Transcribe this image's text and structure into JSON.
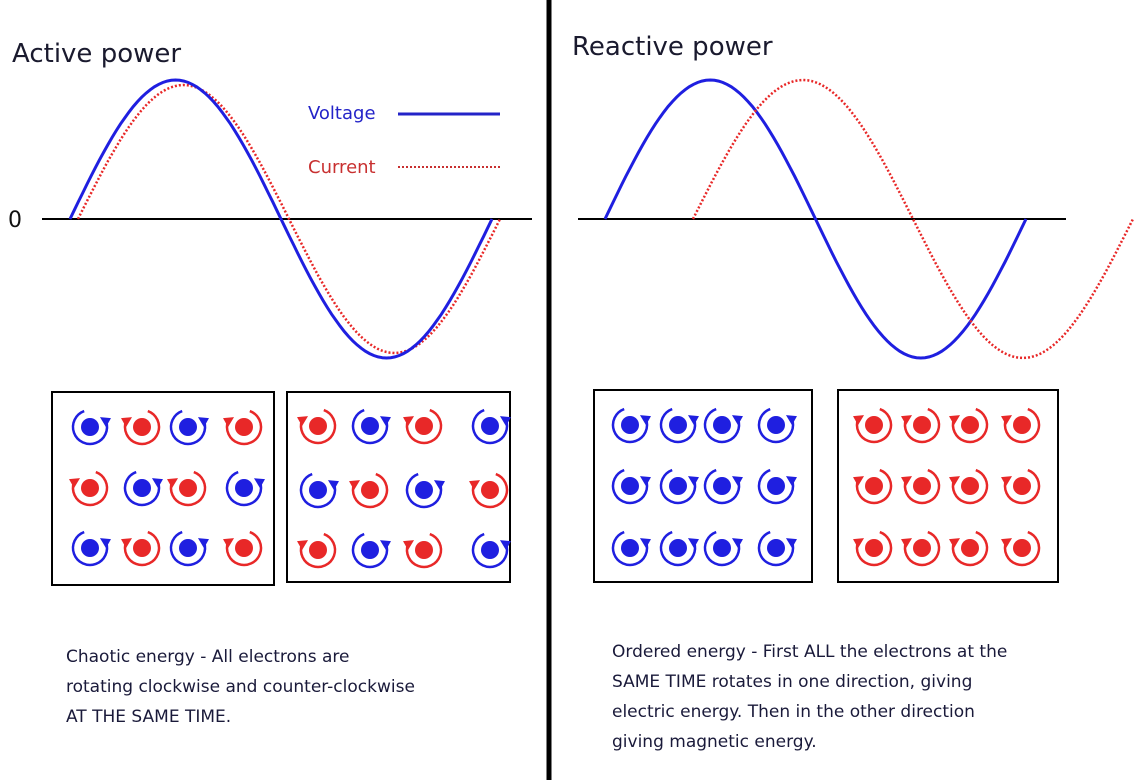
{
  "left": {
    "title": "Active power",
    "zero_label": "0",
    "legend": {
      "voltage": "Voltage",
      "current": "Current"
    },
    "caption": [
      "Chaotic energy - All electrons are",
      "rotating clockwise and counter-clockwise",
      "AT THE SAME TIME."
    ]
  },
  "right": {
    "title": "Reactive power",
    "caption": [
      "Ordered energy - First ALL the electrons at the",
      "SAME TIME rotates in one direction, giving",
      "electric energy. Then in the other direction",
      "giving magnetic energy."
    ]
  }
}
